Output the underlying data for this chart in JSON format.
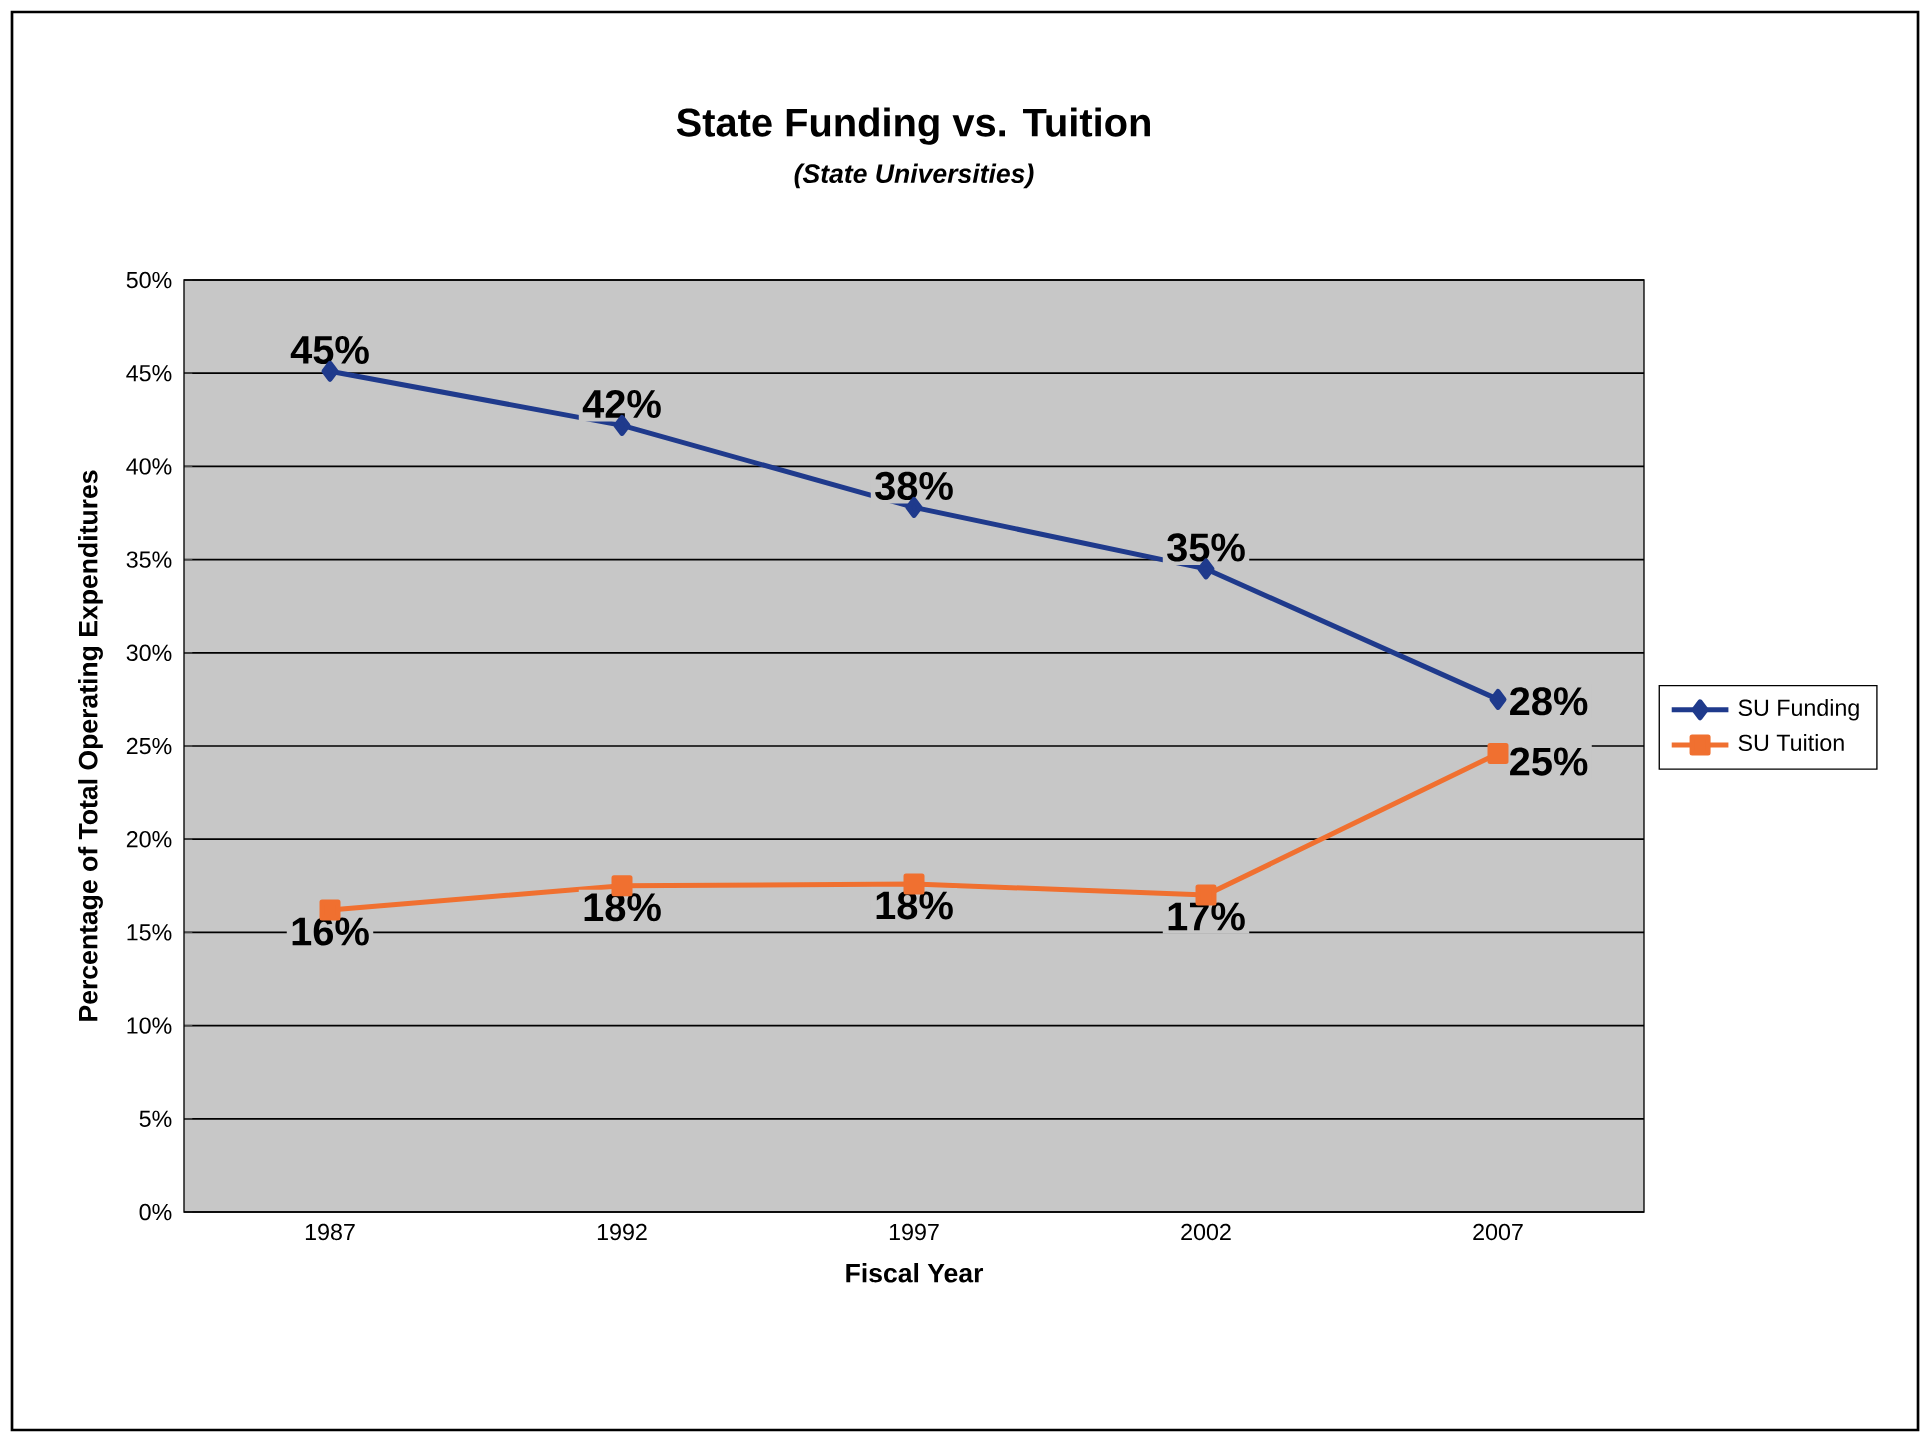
{
  "chart_data": {
    "type": "line",
    "title": "State Funding vs. Tuition",
    "subtitle": "(State Universities)",
    "xlabel": "Fiscal Year",
    "ylabel": "Percentage of Total Operating Expenditures",
    "categories": [
      "1987",
      "1992",
      "1997",
      "2002",
      "2007"
    ],
    "series": [
      {
        "name": "SU Funding",
        "color": "#1f3a8c",
        "marker": "diamond",
        "values": [
          45.1,
          42.2,
          37.8,
          34.5,
          27.5
        ],
        "value_labels": [
          "45%",
          "42%",
          "38%",
          "35%",
          "28%"
        ]
      },
      {
        "name": "SU Tuition",
        "color": "#f07030",
        "marker": "square",
        "values": [
          16.2,
          17.5,
          17.6,
          17.0,
          24.6
        ],
        "value_labels": [
          "16%",
          "18%",
          "18%",
          "17%",
          "25%"
        ]
      }
    ],
    "ylim": [
      0,
      50
    ],
    "yticks": [
      {
        "value": 0,
        "label": "0%"
      },
      {
        "value": 5,
        "label": "5%"
      },
      {
        "value": 10,
        "label": "10%"
      },
      {
        "value": 15,
        "label": "15%"
      },
      {
        "value": 20,
        "label": "20%"
      },
      {
        "value": 25,
        "label": "25%"
      },
      {
        "value": 30,
        "label": "30%"
      },
      {
        "value": 35,
        "label": "35%"
      },
      {
        "value": 40,
        "label": "40%"
      },
      {
        "value": 45,
        "label": "45%"
      },
      {
        "value": 50,
        "label": "50%"
      }
    ],
    "grid": "y",
    "legend": "right"
  }
}
